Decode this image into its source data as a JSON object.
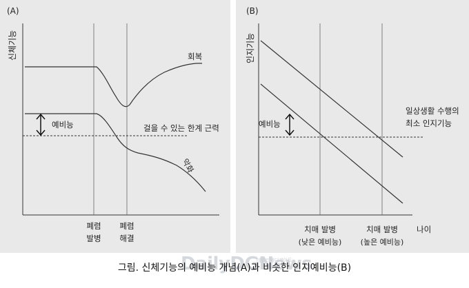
{
  "panel_a": {
    "label": "(A)",
    "y_axis_label": "신체기능",
    "curve_recovery_label": "회복",
    "curve_worse_label": "악화",
    "threshold_label": "걸을 수 있는 한계 근력",
    "reserve_label": "예비능",
    "event1_line1": "폐렴",
    "event1_line2": "발병",
    "event2_line1": "폐렴",
    "event2_line2": "해결"
  },
  "panel_b": {
    "label": "(B)",
    "y_axis_label": "인지기능",
    "threshold_line1": "일상생활 수행의",
    "threshold_line2": "최소 인지기능",
    "reserve_label": "예비능",
    "event1_line1": "치매 발병",
    "event1_line2": "(낮은 예비능)",
    "event2_line1": "치매 발병",
    "event2_line2": "(높은 예비능)",
    "x_axis_label": "나이"
  },
  "caption": "그림. 신체기능의 예비능 개념(A)과 비슷한 인지예비능(B)",
  "watermark": {
    "text": "DailyDGNews",
    "subtext": "데일리메디게이트"
  }
}
